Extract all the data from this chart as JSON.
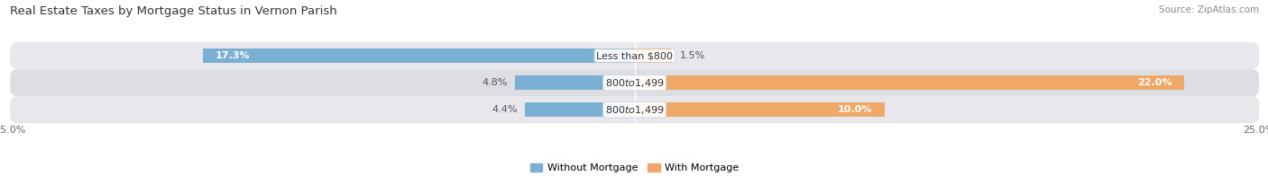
{
  "title": "Real Estate Taxes by Mortgage Status in Vernon Parish",
  "source": "Source: ZipAtlas.com",
  "categories": [
    "Less than $800",
    "$800 to $1,499",
    "$800 to $1,499"
  ],
  "without_mortgage": [
    17.3,
    4.8,
    4.4
  ],
  "with_mortgage": [
    1.5,
    22.0,
    10.0
  ],
  "color_without": "#7bafd4",
  "color_with": "#f0a868",
  "row_colors": [
    "#e8e8ec",
    "#dddde4",
    "#e8e8ec"
  ],
  "xlim": 25.0,
  "legend_labels": [
    "Without Mortgage",
    "With Mortgage"
  ],
  "title_fontsize": 9.5,
  "label_fontsize": 8.0,
  "tick_fontsize": 8.0,
  "source_fontsize": 7.5
}
